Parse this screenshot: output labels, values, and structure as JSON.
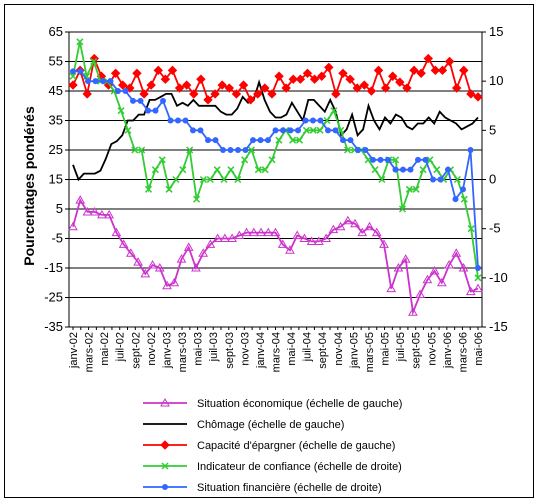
{
  "chart_data": {
    "type": "line",
    "ylabel": "Pourcentages pondérés",
    "left_axis": {
      "min": -35,
      "max": 65,
      "ticks": [
        65,
        55,
        45,
        35,
        25,
        15,
        5,
        -5,
        -15,
        -25,
        -35
      ]
    },
    "right_axis": {
      "min": -15,
      "max": 15,
      "ticks": [
        15,
        10,
        5,
        0,
        -5,
        -10,
        -15
      ]
    },
    "x_tick_labels": [
      "janv-02",
      "mars-02",
      "mai-02",
      "juil-02",
      "sept-02",
      "nov-02",
      "janv-03",
      "mars-03",
      "mai-03",
      "juil-03",
      "sept-03",
      "nov-03",
      "janv-04",
      "mars-04",
      "mai-04",
      "juil-04",
      "sept-04",
      "nov-04",
      "janv-05",
      "mars-05",
      "mai-05",
      "juil-05",
      "sept-05",
      "nov-05",
      "janv-06",
      "mars-06",
      "mai-06"
    ],
    "grid": "horizontal",
    "legend_position": "bottom",
    "series": [
      {
        "name": "Situation économique (échelle de gauche)",
        "axis": "left",
        "color": "#cc33cc",
        "marker": "triangle",
        "values": [
          -1,
          8,
          4,
          4,
          3,
          3,
          -3,
          -7,
          -10,
          -13,
          -17,
          -14,
          -15,
          -21,
          -20,
          -12,
          -8,
          -15,
          -10,
          -7,
          -5,
          -5,
          -5,
          -4,
          -3,
          -3,
          -3,
          -3,
          -3,
          -7,
          -9,
          -4,
          -5,
          -6,
          -6,
          -5,
          -2,
          -1,
          1,
          0,
          -3,
          -1,
          -3,
          -7,
          -22,
          -15,
          -12,
          -30,
          -24,
          -19,
          -16,
          -20,
          -14,
          -10,
          -15,
          -23,
          -22
        ]
      },
      {
        "name": "Chômage (échelle de gauche)",
        "axis": "left",
        "color": "#000000",
        "marker": "none",
        "values": [
          20,
          15,
          17,
          17,
          17,
          18,
          22,
          27,
          28,
          30,
          35,
          35,
          37,
          37,
          42,
          42,
          43,
          44,
          44,
          40,
          41,
          40,
          42,
          40,
          40,
          40,
          40,
          38,
          37,
          37,
          39,
          43,
          41,
          42,
          48,
          42,
          38,
          36,
          36,
          37,
          41,
          38,
          35,
          42,
          42,
          40,
          38,
          42,
          38,
          30,
          32,
          37,
          30,
          32,
          40,
          35,
          32,
          36,
          34,
          37,
          36,
          33,
          32,
          34,
          34,
          36,
          34,
          38,
          36,
          35,
          34,
          32,
          33,
          34,
          36
        ]
      },
      {
        "name": "Capacité d'épargner (échelle de gauche)",
        "axis": "left",
        "color": "#ff0000",
        "marker": "diamond",
        "values": [
          47,
          52,
          44,
          56,
          50,
          47,
          51,
          47,
          46,
          51,
          44,
          47,
          52,
          49,
          52,
          46,
          47,
          44,
          49,
          42,
          44,
          47,
          46,
          44,
          47,
          42,
          44,
          46,
          44,
          50,
          46,
          49,
          49,
          51,
          49,
          50,
          53,
          44,
          51,
          49,
          46,
          47,
          45,
          52,
          46,
          50,
          48,
          46,
          52,
          51,
          56,
          52,
          52,
          55,
          46,
          52,
          44,
          43
        ]
      },
      {
        "name": "Indicateur de confiance (échelle de droite)",
        "axis": "right",
        "color": "#33cc33",
        "marker": "x",
        "values": [
          10.5,
          14,
          10.5,
          12,
          10,
          10,
          9,
          7,
          5,
          3,
          3,
          -1,
          1,
          2,
          -1,
          0,
          1,
          3,
          -2,
          0,
          0,
          1,
          0,
          1,
          0,
          2,
          3,
          1,
          1,
          2,
          4,
          5,
          4,
          4,
          5,
          5,
          5,
          6,
          7,
          5,
          3,
          3,
          3,
          2,
          1,
          0,
          2,
          2,
          -3,
          -1,
          -1,
          1,
          2,
          1,
          0,
          1,
          0,
          -2,
          -5,
          -10
        ]
      },
      {
        "name": "Situation financière (échelle de droite)",
        "axis": "right",
        "color": "#3366ff",
        "marker": "circle",
        "values": [
          11,
          11,
          10,
          10,
          10,
          10,
          9,
          9,
          8,
          8,
          7,
          7,
          8,
          6,
          6,
          6,
          5,
          5,
          4,
          4,
          3,
          3,
          3,
          3,
          4,
          4,
          4,
          5,
          5,
          5,
          5,
          6,
          6,
          6,
          5,
          5,
          4,
          4,
          3,
          3,
          2,
          2,
          2,
          1,
          1,
          1,
          2,
          2,
          0,
          0,
          1,
          -2,
          -1,
          3,
          -9
        ]
      }
    ]
  }
}
